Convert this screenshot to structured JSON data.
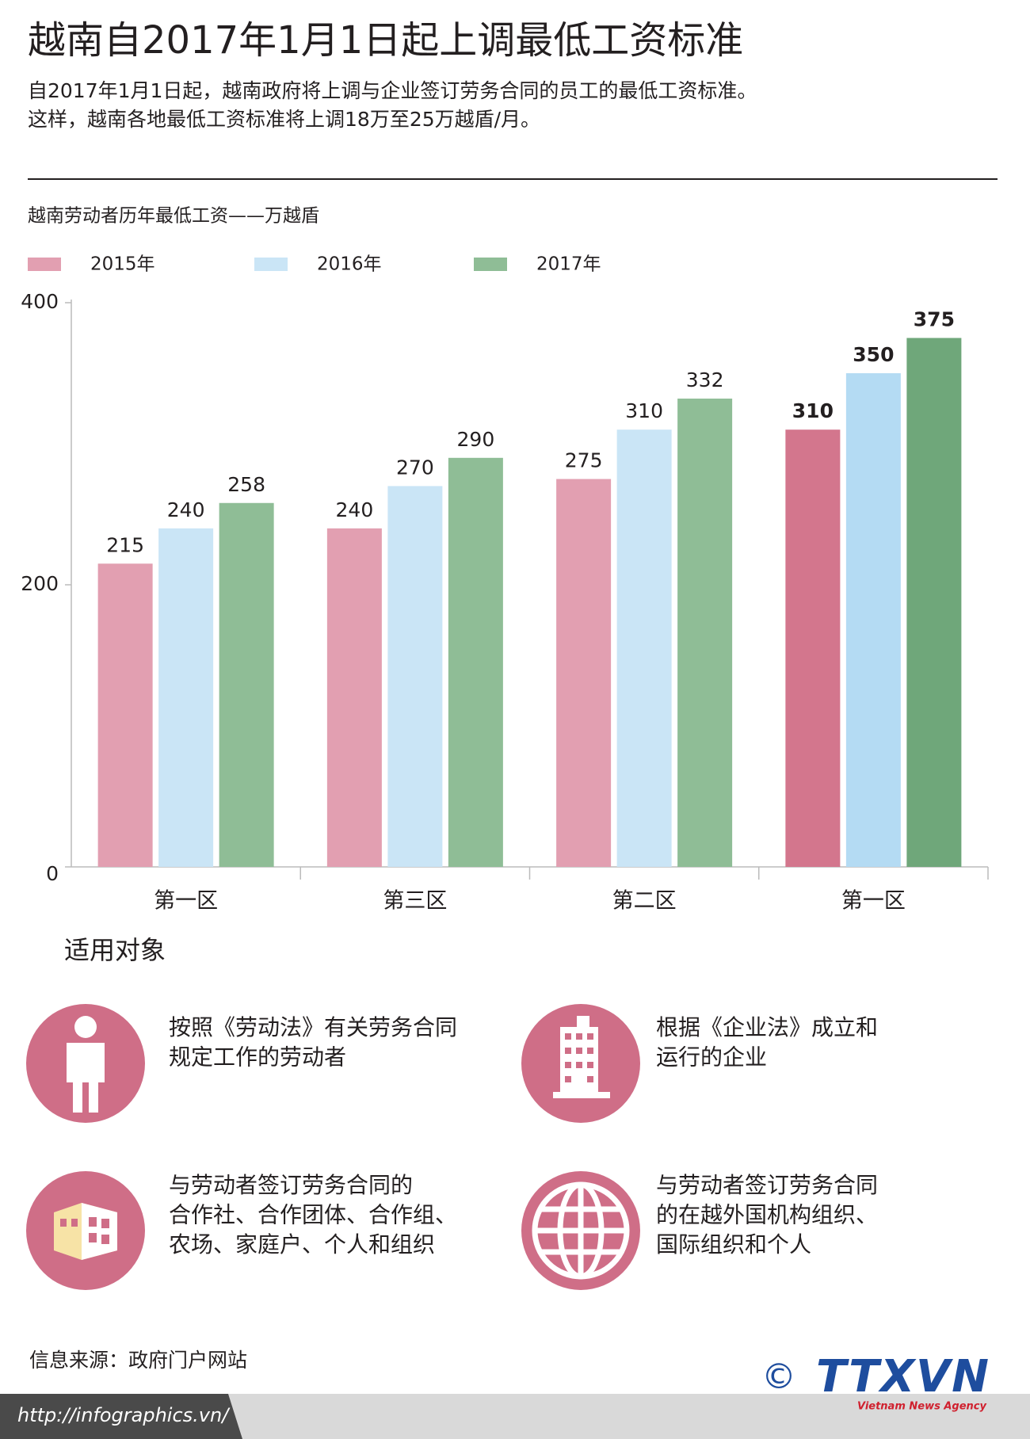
{
  "header": {
    "title": "越南自2017年1月1日起上调最低工资标准",
    "subtitle": [
      "自2017年1月1日起，越南政府将上调与企业签订劳务合同的员工的最低工资标准。",
      "这样，越南各地最低工资标准将上调18万至25万越盾/月。"
    ]
  },
  "chart_data": {
    "type": "bar",
    "ylabel": "越南劳动者历年最低工资——万越盾",
    "categories": [
      "第一区",
      "第三区",
      "第二区",
      "第一区"
    ],
    "series": [
      {
        "name": "2015年",
        "color": "#e29fb1",
        "bar_colors": [
          "#e29fb1",
          "#e29fb1",
          "#e29fb1",
          "#d3768d"
        ],
        "values": [
          215,
          240,
          275,
          310
        ]
      },
      {
        "name": "2016年",
        "color": "#cae5f6",
        "bar_colors": [
          "#cae5f6",
          "#cae5f6",
          "#cae5f6",
          "#b4dbf3"
        ],
        "values": [
          240,
          270,
          310,
          350
        ]
      },
      {
        "name": "2017年",
        "color": "#8fbd96",
        "bar_colors": [
          "#8fbd96",
          "#8fbd96",
          "#8fbd96",
          "#6fa77a"
        ],
        "values": [
          258,
          290,
          332,
          375
        ]
      }
    ],
    "ylim": [
      0,
      400
    ],
    "yticks": [
      0,
      200,
      400
    ],
    "grid": false
  },
  "section_title": "适用对象",
  "items": [
    {
      "lines": [
        "按照《劳动法》有关劳务合同",
        "规定工作的劳动者"
      ]
    },
    {
      "lines": [
        "根据《企业法》成立和",
        "运行的企业"
      ]
    },
    {
      "lines": [
        "与劳动者签订劳务合同的",
        "合作社、合作团体、合作组、",
        "农场、家庭户、个人和组织"
      ]
    },
    {
      "lines": [
        "与劳动者签订劳务合同",
        "的在越外国机构组织、",
        "国际组织和个人"
      ]
    }
  ],
  "source": "信息来源：政府门户网站",
  "url": "http://infographics.vn/",
  "logo": {
    "copyright": "©",
    "name": "TTXVN",
    "tagline": "Vietnam News Agency"
  }
}
